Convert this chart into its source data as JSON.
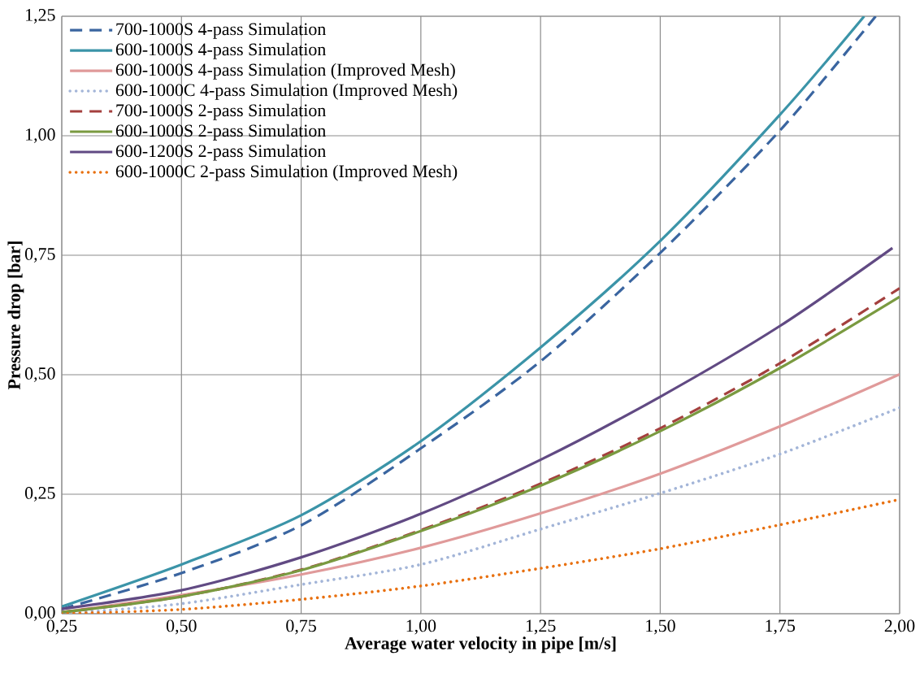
{
  "chart_data": {
    "type": "line",
    "xlabel": "Average water velocity in pipe [m/s]",
    "ylabel": "Pressure drop [bar]",
    "xlim": [
      0.25,
      2.0
    ],
    "ylim": [
      0,
      1.25
    ],
    "xticks": [
      {
        "value": 0.25,
        "label": "0,25"
      },
      {
        "value": 0.5,
        "label": "0,50"
      },
      {
        "value": 0.75,
        "label": "0,75"
      },
      {
        "value": 1.0,
        "label": "1,00"
      },
      {
        "value": 1.25,
        "label": "1,25"
      },
      {
        "value": 1.5,
        "label": "1,50"
      },
      {
        "value": 1.75,
        "label": "1,75"
      },
      {
        "value": 2.0,
        "label": "2,00"
      }
    ],
    "yticks": [
      {
        "value": 0,
        "label": "0,00"
      },
      {
        "value": 0.25,
        "label": "0,25"
      },
      {
        "value": 0.5,
        "label": "0,50"
      },
      {
        "value": 0.75,
        "label": "0,75"
      },
      {
        "value": 1.0,
        "label": "1,00"
      },
      {
        "value": 1.25,
        "label": "1,25"
      }
    ],
    "grid": true,
    "legend": "top left",
    "marker": "none",
    "series": [
      {
        "name": "700-1000S 4-pass Simulation",
        "color": "#3a65a0",
        "line_style": "dashed",
        "x": [
          0.25,
          0.5,
          0.75,
          1.0,
          1.25,
          1.5,
          1.75,
          1.95
        ],
        "values": [
          0.01,
          0.085,
          0.185,
          0.346,
          0.528,
          0.755,
          1.011,
          1.25
        ]
      },
      {
        "name": "600-1000S 4-pass Simulation",
        "color": "#3b94a8",
        "line_style": "solid",
        "x": [
          0.25,
          0.5,
          0.75,
          1.0,
          1.25,
          1.5,
          1.75,
          1.926
        ],
        "values": [
          0.015,
          0.103,
          0.206,
          0.361,
          0.557,
          0.78,
          1.044,
          1.25
        ]
      },
      {
        "name": "600-1000S 4-pass Simulation (Improved Mesh)",
        "color": "#e09a9a",
        "line_style": "solid",
        "x": [
          0.25,
          0.5,
          0.75,
          1.0,
          1.25,
          1.5,
          1.75,
          2.0
        ],
        "values": [
          0.003,
          0.039,
          0.082,
          0.138,
          0.21,
          0.293,
          0.392,
          0.501
        ]
      },
      {
        "name": "600-1000C 4-pass Simulation (Improved Mesh)",
        "color": "#a3b5d8",
        "line_style": "dotted",
        "x": [
          0.25,
          0.5,
          0.75,
          1.0,
          1.25,
          1.5,
          1.75,
          2.0
        ],
        "values": [
          0.0,
          0.021,
          0.061,
          0.103,
          0.177,
          0.252,
          0.334,
          0.431
        ]
      },
      {
        "name": "700-1000S 2-pass Simulation",
        "color": "#a4403e",
        "line_style": "dashed",
        "x": [
          0.25,
          0.5,
          0.75,
          1.0,
          1.25,
          1.5,
          1.75,
          2.0
        ],
        "values": [
          0.003,
          0.036,
          0.092,
          0.175,
          0.272,
          0.388,
          0.524,
          0.681
        ]
      },
      {
        "name": "600-1000S 2-pass Simulation",
        "color": "#7a9a40",
        "line_style": "solid",
        "x": [
          0.25,
          0.5,
          0.75,
          1.0,
          1.25,
          1.5,
          1.75,
          2.0
        ],
        "values": [
          0.003,
          0.036,
          0.091,
          0.173,
          0.268,
          0.382,
          0.514,
          0.663
        ]
      },
      {
        "name": "600-1200S 2-pass Simulation",
        "color": "#614a83",
        "line_style": "solid",
        "x": [
          0.25,
          0.5,
          0.75,
          1.0,
          1.25,
          1.5,
          1.75,
          1.985
        ],
        "values": [
          0.01,
          0.049,
          0.118,
          0.209,
          0.322,
          0.454,
          0.602,
          0.765
        ]
      },
      {
        "name": "600-1000C 2-pass Simulation (Improved Mesh)",
        "color": "#e8700f",
        "line_style": "dotted",
        "x": [
          0.25,
          0.5,
          0.75,
          1.0,
          1.25,
          1.5,
          1.75,
          2.0
        ],
        "values": [
          0.0,
          0.009,
          0.03,
          0.058,
          0.095,
          0.136,
          0.186,
          0.239
        ]
      }
    ]
  }
}
